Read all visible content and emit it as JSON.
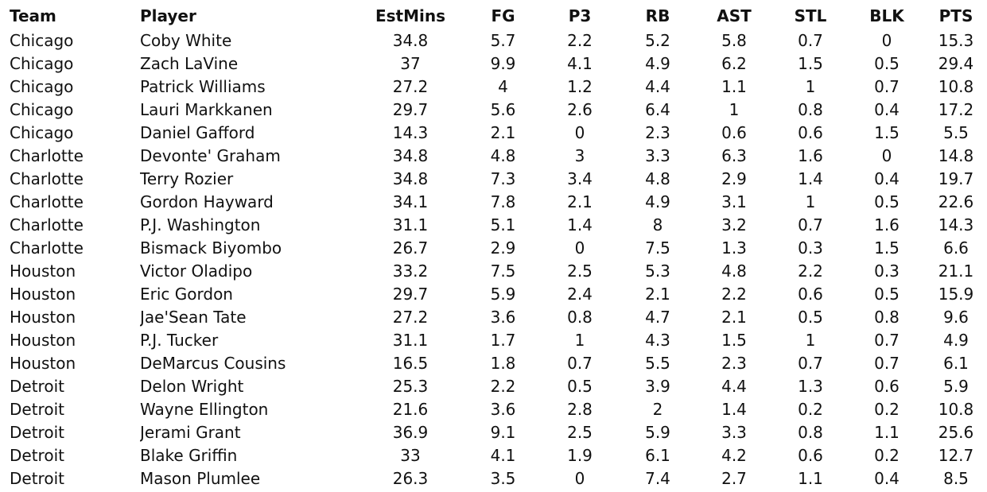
{
  "headers": {
    "team": "Team",
    "player": "Player",
    "estmins": "EstMins",
    "fg": "FG",
    "p3": "P3",
    "rb": "RB",
    "ast": "AST",
    "stl": "STL",
    "blk": "BLK",
    "pts": "PTS"
  },
  "rows": [
    {
      "team": "Chicago",
      "player": "Coby White",
      "estmins": "34.8",
      "fg": "5.7",
      "p3": "2.2",
      "rb": "5.2",
      "ast": "5.8",
      "stl": "0.7",
      "blk": "0",
      "pts": "15.3"
    },
    {
      "team": "Chicago",
      "player": "Zach LaVine",
      "estmins": "37",
      "fg": "9.9",
      "p3": "4.1",
      "rb": "4.9",
      "ast": "6.2",
      "stl": "1.5",
      "blk": "0.5",
      "pts": "29.4"
    },
    {
      "team": "Chicago",
      "player": "Patrick Williams",
      "estmins": "27.2",
      "fg": "4",
      "p3": "1.2",
      "rb": "4.4",
      "ast": "1.1",
      "stl": "1",
      "blk": "0.7",
      "pts": "10.8"
    },
    {
      "team": "Chicago",
      "player": "Lauri Markkanen",
      "estmins": "29.7",
      "fg": "5.6",
      "p3": "2.6",
      "rb": "6.4",
      "ast": "1",
      "stl": "0.8",
      "blk": "0.4",
      "pts": "17.2"
    },
    {
      "team": "Chicago",
      "player": "Daniel Gafford",
      "estmins": "14.3",
      "fg": "2.1",
      "p3": "0",
      "rb": "2.3",
      "ast": "0.6",
      "stl": "0.6",
      "blk": "1.5",
      "pts": "5.5"
    },
    {
      "team": "Charlotte",
      "player": "Devonte' Graham",
      "estmins": "34.8",
      "fg": "4.8",
      "p3": "3",
      "rb": "3.3",
      "ast": "6.3",
      "stl": "1.6",
      "blk": "0",
      "pts": "14.8"
    },
    {
      "team": "Charlotte",
      "player": "Terry Rozier",
      "estmins": "34.8",
      "fg": "7.3",
      "p3": "3.4",
      "rb": "4.8",
      "ast": "2.9",
      "stl": "1.4",
      "blk": "0.4",
      "pts": "19.7"
    },
    {
      "team": "Charlotte",
      "player": "Gordon Hayward",
      "estmins": "34.1",
      "fg": "7.8",
      "p3": "2.1",
      "rb": "4.9",
      "ast": "3.1",
      "stl": "1",
      "blk": "0.5",
      "pts": "22.6"
    },
    {
      "team": "Charlotte",
      "player": "P.J. Washington",
      "estmins": "31.1",
      "fg": "5.1",
      "p3": "1.4",
      "rb": "8",
      "ast": "3.2",
      "stl": "0.7",
      "blk": "1.6",
      "pts": "14.3"
    },
    {
      "team": "Charlotte",
      "player": "Bismack Biyombo",
      "estmins": "26.7",
      "fg": "2.9",
      "p3": "0",
      "rb": "7.5",
      "ast": "1.3",
      "stl": "0.3",
      "blk": "1.5",
      "pts": "6.6"
    },
    {
      "team": "Houston",
      "player": "Victor Oladipo",
      "estmins": "33.2",
      "fg": "7.5",
      "p3": "2.5",
      "rb": "5.3",
      "ast": "4.8",
      "stl": "2.2",
      "blk": "0.3",
      "pts": "21.1"
    },
    {
      "team": "Houston",
      "player": "Eric Gordon",
      "estmins": "29.7",
      "fg": "5.9",
      "p3": "2.4",
      "rb": "2.1",
      "ast": "2.2",
      "stl": "0.6",
      "blk": "0.5",
      "pts": "15.9"
    },
    {
      "team": "Houston",
      "player": "Jae'Sean Tate",
      "estmins": "27.2",
      "fg": "3.6",
      "p3": "0.8",
      "rb": "4.7",
      "ast": "2.1",
      "stl": "0.5",
      "blk": "0.8",
      "pts": "9.6"
    },
    {
      "team": "Houston",
      "player": "P.J. Tucker",
      "estmins": "31.1",
      "fg": "1.7",
      "p3": "1",
      "rb": "4.3",
      "ast": "1.5",
      "stl": "1",
      "blk": "0.7",
      "pts": "4.9"
    },
    {
      "team": "Houston",
      "player": "DeMarcus Cousins",
      "estmins": "16.5",
      "fg": "1.8",
      "p3": "0.7",
      "rb": "5.5",
      "ast": "2.3",
      "stl": "0.7",
      "blk": "0.7",
      "pts": "6.1"
    },
    {
      "team": "Detroit",
      "player": "Delon Wright",
      "estmins": "25.3",
      "fg": "2.2",
      "p3": "0.5",
      "rb": "3.9",
      "ast": "4.4",
      "stl": "1.3",
      "blk": "0.6",
      "pts": "5.9"
    },
    {
      "team": "Detroit",
      "player": "Wayne Ellington",
      "estmins": "21.6",
      "fg": "3.6",
      "p3": "2.8",
      "rb": "2",
      "ast": "1.4",
      "stl": "0.2",
      "blk": "0.2",
      "pts": "10.8"
    },
    {
      "team": "Detroit",
      "player": "Jerami Grant",
      "estmins": "36.9",
      "fg": "9.1",
      "p3": "2.5",
      "rb": "5.9",
      "ast": "3.3",
      "stl": "0.8",
      "blk": "1.1",
      "pts": "25.6"
    },
    {
      "team": "Detroit",
      "player": "Blake Griffin",
      "estmins": "33",
      "fg": "4.1",
      "p3": "1.9",
      "rb": "6.1",
      "ast": "4.2",
      "stl": "0.6",
      "blk": "0.2",
      "pts": "12.7"
    },
    {
      "team": "Detroit",
      "player": "Mason Plumlee",
      "estmins": "26.3",
      "fg": "3.5",
      "p3": "0",
      "rb": "7.4",
      "ast": "2.7",
      "stl": "1.1",
      "blk": "0.4",
      "pts": "8.5"
    }
  ]
}
